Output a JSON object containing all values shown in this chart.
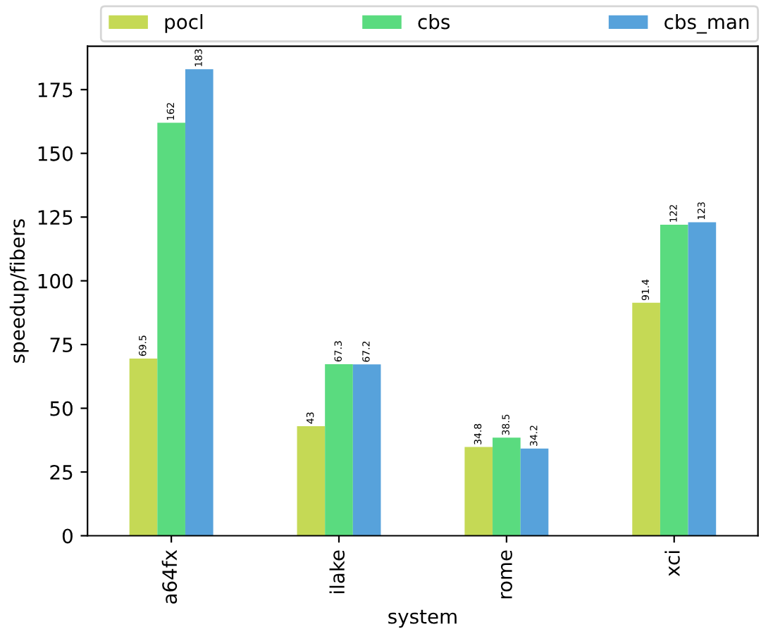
{
  "chart_data": {
    "type": "bar",
    "xlabel": "system",
    "ylabel": "speedup/fibers",
    "categories": [
      "a64fx",
      "ilake",
      "rome",
      "xci"
    ],
    "series": [
      {
        "name": "pocl",
        "color": "#c5d955",
        "values": [
          69.5,
          43,
          34.8,
          91.4
        ]
      },
      {
        "name": "cbs",
        "color": "#5adb7f",
        "values": [
          162,
          67.3,
          38.5,
          122
        ]
      },
      {
        "name": "cbs_man",
        "color": "#57a2db",
        "values": [
          183,
          67.2,
          34.2,
          123
        ]
      }
    ],
    "ylim": [
      0,
      192
    ],
    "yticks": [
      0,
      25,
      50,
      75,
      100,
      125,
      150,
      175
    ],
    "data_labels": true,
    "grid": false,
    "legend": "top"
  }
}
